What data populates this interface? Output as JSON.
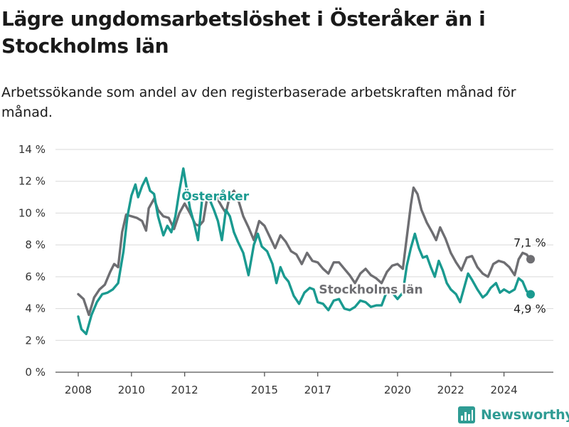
{
  "chart_data": {
    "type": "line",
    "title": "Lägre ungdomsarbetslöshet i Österåker än i Stockholms län",
    "subtitle": "Arbetssökande som andel av den registerbaserade arbetskraften månad för månad.",
    "ylim": [
      0,
      14
    ],
    "y_ticks": [
      0,
      2,
      4,
      6,
      8,
      10,
      12,
      14
    ],
    "y_tick_labels": [
      "0 %",
      "2 %",
      "4 %",
      "6 %",
      "8 %",
      "10 %",
      "12 %",
      "14 %"
    ],
    "x_ticks": [
      2008,
      2010,
      2012,
      2015,
      2017,
      2020,
      2022,
      2024
    ],
    "x_tick_labels": [
      "2008",
      "2010",
      "2012",
      "2015",
      "2017",
      "2020",
      "2022",
      "2024"
    ],
    "grid": true,
    "series": [
      {
        "name": "Stockholms län",
        "color": "#6e6e72",
        "end_label": "7,1 %",
        "points": [
          [
            2008.0,
            4.9
          ],
          [
            2008.2,
            4.6
          ],
          [
            2008.4,
            3.6
          ],
          [
            2008.6,
            4.7
          ],
          [
            2008.8,
            5.2
          ],
          [
            2009.0,
            5.5
          ],
          [
            2009.2,
            6.3
          ],
          [
            2009.35,
            6.8
          ],
          [
            2009.5,
            6.6
          ],
          [
            2009.65,
            8.8
          ],
          [
            2009.8,
            9.9
          ],
          [
            2010.0,
            9.8
          ],
          [
            2010.2,
            9.7
          ],
          [
            2010.4,
            9.5
          ],
          [
            2010.55,
            8.9
          ],
          [
            2010.65,
            10.3
          ],
          [
            2010.85,
            10.9
          ],
          [
            2011.0,
            10.2
          ],
          [
            2011.2,
            9.8
          ],
          [
            2011.4,
            9.7
          ],
          [
            2011.6,
            9.0
          ],
          [
            2011.8,
            10.0
          ],
          [
            2012.0,
            10.6
          ],
          [
            2012.2,
            10.0
          ],
          [
            2012.4,
            9.3
          ],
          [
            2012.55,
            9.2
          ],
          [
            2012.7,
            9.5
          ],
          [
            2012.85,
            11.0
          ],
          [
            2013.0,
            11.2
          ],
          [
            2013.2,
            11.0
          ],
          [
            2013.4,
            10.4
          ],
          [
            2013.55,
            10.0
          ],
          [
            2013.7,
            11.1
          ],
          [
            2013.85,
            11.4
          ],
          [
            2014.0,
            10.9
          ],
          [
            2014.2,
            9.8
          ],
          [
            2014.4,
            9.1
          ],
          [
            2014.6,
            8.3
          ],
          [
            2014.8,
            9.5
          ],
          [
            2015.0,
            9.2
          ],
          [
            2015.2,
            8.5
          ],
          [
            2015.4,
            7.8
          ],
          [
            2015.6,
            8.6
          ],
          [
            2015.8,
            8.2
          ],
          [
            2016.0,
            7.6
          ],
          [
            2016.2,
            7.4
          ],
          [
            2016.4,
            6.8
          ],
          [
            2016.6,
            7.5
          ],
          [
            2016.8,
            7.0
          ],
          [
            2017.0,
            6.9
          ],
          [
            2017.2,
            6.5
          ],
          [
            2017.4,
            6.2
          ],
          [
            2017.6,
            6.9
          ],
          [
            2017.8,
            6.9
          ],
          [
            2018.0,
            6.5
          ],
          [
            2018.2,
            6.1
          ],
          [
            2018.4,
            5.6
          ],
          [
            2018.6,
            6.2
          ],
          [
            2018.8,
            6.5
          ],
          [
            2019.0,
            6.1
          ],
          [
            2019.2,
            5.9
          ],
          [
            2019.4,
            5.6
          ],
          [
            2019.6,
            6.3
          ],
          [
            2019.8,
            6.7
          ],
          [
            2020.0,
            6.8
          ],
          [
            2020.2,
            6.5
          ],
          [
            2020.35,
            8.5
          ],
          [
            2020.5,
            10.5
          ],
          [
            2020.6,
            11.6
          ],
          [
            2020.75,
            11.2
          ],
          [
            2020.9,
            10.2
          ],
          [
            2021.1,
            9.4
          ],
          [
            2021.3,
            8.8
          ],
          [
            2021.45,
            8.3
          ],
          [
            2021.6,
            9.1
          ],
          [
            2021.8,
            8.4
          ],
          [
            2022.0,
            7.5
          ],
          [
            2022.2,
            6.9
          ],
          [
            2022.4,
            6.4
          ],
          [
            2022.6,
            7.2
          ],
          [
            2022.8,
            7.3
          ],
          [
            2023.0,
            6.6
          ],
          [
            2023.2,
            6.2
          ],
          [
            2023.4,
            6.0
          ],
          [
            2023.6,
            6.8
          ],
          [
            2023.8,
            7.0
          ],
          [
            2024.0,
            6.9
          ],
          [
            2024.2,
            6.6
          ],
          [
            2024.4,
            6.1
          ],
          [
            2024.55,
            7.1
          ],
          [
            2024.7,
            7.5
          ],
          [
            2024.85,
            7.4
          ],
          [
            2025.0,
            7.1
          ]
        ]
      },
      {
        "name": "Österåker",
        "color": "#1a9a90",
        "end_label": "4,9 %",
        "points": [
          [
            2008.0,
            3.5
          ],
          [
            2008.12,
            2.7
          ],
          [
            2008.3,
            2.4
          ],
          [
            2008.5,
            3.6
          ],
          [
            2008.7,
            4.4
          ],
          [
            2008.9,
            4.9
          ],
          [
            2009.1,
            5.0
          ],
          [
            2009.3,
            5.2
          ],
          [
            2009.5,
            5.6
          ],
          [
            2009.7,
            7.6
          ],
          [
            2009.85,
            9.8
          ],
          [
            2010.0,
            11.1
          ],
          [
            2010.15,
            11.8
          ],
          [
            2010.25,
            11.0
          ],
          [
            2010.4,
            11.7
          ],
          [
            2010.55,
            12.2
          ],
          [
            2010.7,
            11.4
          ],
          [
            2010.85,
            11.2
          ],
          [
            2011.0,
            9.8
          ],
          [
            2011.2,
            8.6
          ],
          [
            2011.35,
            9.2
          ],
          [
            2011.5,
            8.8
          ],
          [
            2011.65,
            9.8
          ],
          [
            2011.8,
            11.4
          ],
          [
            2011.95,
            12.8
          ],
          [
            2012.05,
            11.8
          ],
          [
            2012.2,
            10.3
          ],
          [
            2012.35,
            9.4
          ],
          [
            2012.5,
            8.3
          ],
          [
            2012.65,
            10.8
          ],
          [
            2012.8,
            10.9
          ],
          [
            2012.95,
            10.8
          ],
          [
            2013.1,
            10.2
          ],
          [
            2013.25,
            9.5
          ],
          [
            2013.4,
            8.3
          ],
          [
            2013.55,
            10.2
          ],
          [
            2013.7,
            9.8
          ],
          [
            2013.85,
            8.8
          ],
          [
            2014.0,
            8.2
          ],
          [
            2014.2,
            7.5
          ],
          [
            2014.4,
            6.1
          ],
          [
            2014.6,
            8.0
          ],
          [
            2014.75,
            8.7
          ],
          [
            2014.9,
            7.9
          ],
          [
            2015.1,
            7.6
          ],
          [
            2015.3,
            6.8
          ],
          [
            2015.45,
            5.6
          ],
          [
            2015.6,
            6.6
          ],
          [
            2015.75,
            6.0
          ],
          [
            2015.9,
            5.7
          ],
          [
            2016.1,
            4.8
          ],
          [
            2016.3,
            4.3
          ],
          [
            2016.5,
            5.0
          ],
          [
            2016.7,
            5.3
          ],
          [
            2016.85,
            5.2
          ],
          [
            2017.0,
            4.4
          ],
          [
            2017.2,
            4.3
          ],
          [
            2017.4,
            3.9
          ],
          [
            2017.6,
            4.5
          ],
          [
            2017.8,
            4.6
          ],
          [
            2018.0,
            4.0
          ],
          [
            2018.2,
            3.9
          ],
          [
            2018.4,
            4.1
          ],
          [
            2018.6,
            4.5
          ],
          [
            2018.8,
            4.4
          ],
          [
            2019.0,
            4.1
          ],
          [
            2019.2,
            4.2
          ],
          [
            2019.4,
            4.2
          ],
          [
            2019.6,
            5.1
          ],
          [
            2019.8,
            5.0
          ],
          [
            2020.0,
            4.6
          ],
          [
            2020.2,
            5.0
          ],
          [
            2020.35,
            6.7
          ],
          [
            2020.5,
            7.8
          ],
          [
            2020.65,
            8.7
          ],
          [
            2020.8,
            7.8
          ],
          [
            2020.95,
            7.2
          ],
          [
            2021.1,
            7.3
          ],
          [
            2021.25,
            6.6
          ],
          [
            2021.4,
            6.0
          ],
          [
            2021.55,
            7.0
          ],
          [
            2021.7,
            6.4
          ],
          [
            2021.85,
            5.6
          ],
          [
            2022.0,
            5.2
          ],
          [
            2022.2,
            4.9
          ],
          [
            2022.35,
            4.4
          ],
          [
            2022.5,
            5.3
          ],
          [
            2022.65,
            6.2
          ],
          [
            2022.8,
            5.8
          ],
          [
            2023.0,
            5.2
          ],
          [
            2023.2,
            4.7
          ],
          [
            2023.35,
            4.9
          ],
          [
            2023.5,
            5.3
          ],
          [
            2023.7,
            5.6
          ],
          [
            2023.85,
            5.0
          ],
          [
            2024.0,
            5.2
          ],
          [
            2024.2,
            5.0
          ],
          [
            2024.4,
            5.2
          ],
          [
            2024.55,
            5.9
          ],
          [
            2024.7,
            5.7
          ],
          [
            2024.85,
            5.1
          ],
          [
            2025.0,
            4.9
          ]
        ]
      }
    ],
    "inline_labels": [
      {
        "series": "Österåker",
        "text": "Österåker",
        "at": [
          2013.15,
          10.8
        ]
      },
      {
        "series": "Stockholms län",
        "text": "Stockholms län",
        "at": [
          2019.0,
          4.95
        ]
      }
    ]
  },
  "brand": {
    "name": "Newsworthy",
    "icon": "bar-chart-icon",
    "color": "#2f9c94"
  }
}
